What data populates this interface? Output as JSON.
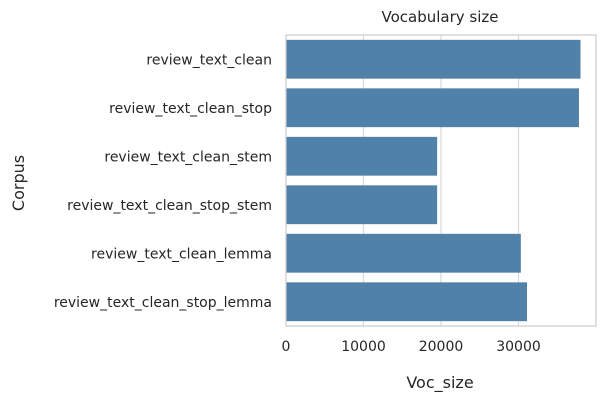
{
  "chart_data": {
    "type": "bar",
    "orientation": "horizontal",
    "title": "Vocabulary size",
    "xlabel": "Voc_size",
    "ylabel": "Corpus",
    "categories": [
      "review_text_clean",
      "review_text_clean_stop",
      "review_text_clean_stem",
      "review_text_clean_stop_stem",
      "review_text_clean_lemma",
      "review_text_clean_stop_lemma"
    ],
    "values": [
      38000,
      37800,
      19500,
      19500,
      30300,
      31100
    ],
    "xlim": [
      0,
      40000
    ],
    "xticks": [
      0,
      10000,
      20000,
      30000
    ],
    "xtick_labels": [
      "0",
      "10000",
      "20000",
      "30000"
    ],
    "grid": true,
    "bar_color": "#5081a8"
  }
}
